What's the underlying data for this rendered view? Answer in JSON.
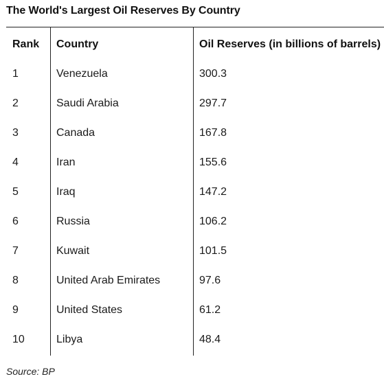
{
  "chart_data": {
    "type": "table",
    "title": "The World's Largest Oil Reserves By Country",
    "columns": [
      "Rank",
      "Country",
      "Oil Reserves (in billions of barrels)"
    ],
    "rows": [
      {
        "rank": "1",
        "country": "Venezuela",
        "value": "300.3"
      },
      {
        "rank": "2",
        "country": "Saudi Arabia",
        "value": "297.7"
      },
      {
        "rank": "3",
        "country": "Canada",
        "value": "167.8"
      },
      {
        "rank": "4",
        "country": "Iran",
        "value": "155.6"
      },
      {
        "rank": "5",
        "country": "Iraq",
        "value": "147.2"
      },
      {
        "rank": "6",
        "country": "Russia",
        "value": "106.2"
      },
      {
        "rank": "7",
        "country": "Kuwait",
        "value": "101.5"
      },
      {
        "rank": "8",
        "country": "United Arab Emirates",
        "value": "97.6"
      },
      {
        "rank": "9",
        "country": "United States",
        "value": "61.2"
      },
      {
        "rank": "10",
        "country": "Libya",
        "value": "48.4"
      }
    ],
    "source": "Source: BP"
  }
}
